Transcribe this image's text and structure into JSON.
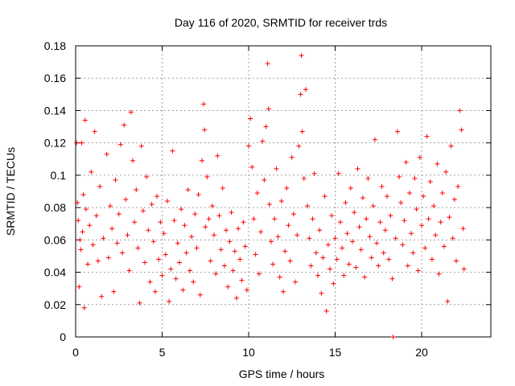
{
  "chart_data": {
    "type": "scatter",
    "title": "Day 116 of 2020, SRMTID for receiver trds",
    "xlabel": "GPS time / hours",
    "ylabel": "SRMTID / TECUs",
    "xlim": [
      0,
      24
    ],
    "ylim": [
      0,
      0.18
    ],
    "x_ticks": [
      0,
      5,
      10,
      15,
      20
    ],
    "x_tick_labels": [
      "0",
      "5",
      "10",
      "15",
      "20"
    ],
    "y_ticks": [
      0,
      0.02,
      0.04,
      0.06,
      0.08,
      0.1,
      0.12,
      0.14,
      0.16,
      0.18
    ],
    "y_tick_labels": [
      "0",
      "0.02",
      "0.04",
      "0.06",
      "0.08",
      "0.1",
      "0.12",
      "0.14",
      "0.16",
      "0.18"
    ],
    "grid": true,
    "marker": "+",
    "color": "#ff0000",
    "series": [
      {
        "name": "SRMTID",
        "points": [
          [
            0.05,
            0.12
          ],
          [
            0.1,
            0.083
          ],
          [
            0.15,
            0.072
          ],
          [
            0.2,
            0.031
          ],
          [
            0.25,
            0.06
          ],
          [
            0.3,
            0.054
          ],
          [
            0.35,
            0.12
          ],
          [
            0.4,
            0.065
          ],
          [
            0.45,
            0.088
          ],
          [
            0.5,
            0.018
          ],
          [
            0.55,
            0.134
          ],
          [
            0.6,
            0.079
          ],
          [
            0.7,
            0.045
          ],
          [
            0.8,
            0.069
          ],
          [
            0.9,
            0.102
          ],
          [
            1.0,
            0.057
          ],
          [
            1.1,
            0.127
          ],
          [
            1.2,
            0.075
          ],
          [
            1.3,
            0.047
          ],
          [
            1.4,
            0.093
          ],
          [
            1.5,
            0.025
          ],
          [
            1.6,
            0.061
          ],
          [
            1.8,
            0.113
          ],
          [
            1.9,
            0.049
          ],
          [
            2.0,
            0.081
          ],
          [
            2.1,
            0.067
          ],
          [
            2.2,
            0.028
          ],
          [
            2.3,
            0.097
          ],
          [
            2.4,
            0.058
          ],
          [
            2.5,
            0.076
          ],
          [
            2.6,
            0.119
          ],
          [
            2.7,
            0.052
          ],
          [
            2.8,
            0.131
          ],
          [
            2.9,
            0.085
          ],
          [
            3.0,
            0.063
          ],
          [
            3.1,
            0.041
          ],
          [
            3.2,
            0.139
          ],
          [
            3.3,
            0.109
          ],
          [
            3.4,
            0.071
          ],
          [
            3.5,
            0.091
          ],
          [
            3.6,
            0.055
          ],
          [
            3.7,
            0.021
          ],
          [
            3.8,
            0.118
          ],
          [
            3.9,
            0.078
          ],
          [
            4.0,
            0.046
          ],
          [
            4.1,
            0.099
          ],
          [
            4.2,
            0.066
          ],
          [
            4.3,
            0.034
          ],
          [
            4.4,
            0.082
          ],
          [
            4.5,
            0.059
          ],
          [
            4.6,
            0.028
          ],
          [
            4.7,
            0.087
          ],
          [
            4.8,
            0.048
          ],
          [
            4.9,
            0.071
          ],
          [
            5.0,
            0.038
          ],
          [
            5.1,
            0.064
          ],
          [
            5.2,
            0.051
          ],
          [
            5.3,
            0.084
          ],
          [
            5.4,
            0.022
          ],
          [
            5.5,
            0.042
          ],
          [
            5.6,
            0.115
          ],
          [
            5.7,
            0.072
          ],
          [
            5.8,
            0.036
          ],
          [
            5.9,
            0.058
          ],
          [
            6.0,
            0.046
          ],
          [
            6.1,
            0.079
          ],
          [
            6.2,
            0.029
          ],
          [
            6.3,
            0.069
          ],
          [
            6.4,
            0.052
          ],
          [
            6.5,
            0.091
          ],
          [
            6.6,
            0.041
          ],
          [
            6.7,
            0.062
          ],
          [
            6.8,
            0.034
          ],
          [
            6.9,
            0.076
          ],
          [
            7.0,
            0.055
          ],
          [
            7.1,
            0.088
          ],
          [
            7.2,
            0.026
          ],
          [
            7.3,
            0.109
          ],
          [
            7.4,
            0.144
          ],
          [
            7.45,
            0.128
          ],
          [
            7.5,
            0.068
          ],
          [
            7.6,
            0.099
          ],
          [
            7.7,
            0.073
          ],
          [
            7.8,
            0.047
          ],
          [
            7.9,
            0.081
          ],
          [
            8.0,
            0.063
          ],
          [
            8.1,
            0.039
          ],
          [
            8.2,
            0.112
          ],
          [
            8.3,
            0.075
          ],
          [
            8.4,
            0.054
          ],
          [
            8.5,
            0.092
          ],
          [
            8.6,
            0.044
          ],
          [
            8.7,
            0.066
          ],
          [
            8.8,
            0.031
          ],
          [
            8.9,
            0.059
          ],
          [
            9.0,
            0.077
          ],
          [
            9.1,
            0.041
          ],
          [
            9.2,
            0.053
          ],
          [
            9.3,
            0.024
          ],
          [
            9.4,
            0.067
          ],
          [
            9.5,
            0.048
          ],
          [
            9.6,
            0.035
          ],
          [
            9.7,
            0.071
          ],
          [
            9.8,
            0.056
          ],
          [
            9.9,
            0.029
          ],
          [
            10.0,
            0.118
          ],
          [
            10.1,
            0.135
          ],
          [
            10.2,
            0.105
          ],
          [
            10.3,
            0.073
          ],
          [
            10.4,
            0.051
          ],
          [
            10.5,
            0.089
          ],
          [
            10.6,
            0.039
          ],
          [
            10.7,
            0.065
          ],
          [
            10.8,
            0.121
          ],
          [
            10.9,
            0.097
          ],
          [
            11.0,
            0.13
          ],
          [
            11.1,
            0.169
          ],
          [
            11.15,
            0.141
          ],
          [
            11.2,
            0.082
          ],
          [
            11.3,
            0.059
          ],
          [
            11.4,
            0.045
          ],
          [
            11.5,
            0.073
          ],
          [
            11.6,
            0.104
          ],
          [
            11.7,
            0.062
          ],
          [
            11.8,
            0.037
          ],
          [
            11.9,
            0.084
          ],
          [
            12.0,
            0.028
          ],
          [
            12.1,
            0.053
          ],
          [
            12.2,
            0.092
          ],
          [
            12.3,
            0.069
          ],
          [
            12.4,
            0.047
          ],
          [
            12.5,
            0.111
          ],
          [
            12.6,
            0.076
          ],
          [
            12.7,
            0.034
          ],
          [
            12.8,
            0.063
          ],
          [
            12.9,
            0.118
          ],
          [
            13.0,
            0.15
          ],
          [
            13.05,
            0.174
          ],
          [
            13.1,
            0.127
          ],
          [
            13.2,
            0.098
          ],
          [
            13.3,
            0.153
          ],
          [
            13.4,
            0.081
          ],
          [
            13.5,
            0.061
          ],
          [
            13.6,
            0.044
          ],
          [
            13.7,
            0.073
          ],
          [
            13.8,
            0.101
          ],
          [
            13.9,
            0.052
          ],
          [
            14.0,
            0.038
          ],
          [
            14.1,
            0.066
          ],
          [
            14.2,
            0.027
          ],
          [
            14.3,
            0.049
          ],
          [
            14.4,
            0.087
          ],
          [
            14.5,
            0.016
          ],
          [
            14.6,
            0.057
          ],
          [
            14.7,
            0.042
          ],
          [
            14.8,
            0.075
          ],
          [
            14.9,
            0.033
          ],
          [
            15.0,
            0.061
          ],
          [
            15.1,
            0.048
          ],
          [
            15.2,
            0.101
          ],
          [
            15.3,
            0.071
          ],
          [
            15.4,
            0.055
          ],
          [
            15.5,
            0.038
          ],
          [
            15.6,
            0.083
          ],
          [
            15.7,
            0.064
          ],
          [
            15.8,
            0.045
          ],
          [
            15.9,
            0.092
          ],
          [
            16.0,
            0.059
          ],
          [
            16.1,
            0.077
          ],
          [
            16.2,
            0.043
          ],
          [
            16.3,
            0.104
          ],
          [
            16.4,
            0.068
          ],
          [
            16.5,
            0.054
          ],
          [
            16.6,
            0.086
          ],
          [
            16.7,
            0.037
          ],
          [
            16.8,
            0.073
          ],
          [
            16.9,
            0.098
          ],
          [
            17.0,
            0.062
          ],
          [
            17.1,
            0.049
          ],
          [
            17.2,
            0.081
          ],
          [
            17.3,
            0.122
          ],
          [
            17.4,
            0.058
          ],
          [
            17.5,
            0.044
          ],
          [
            17.6,
            0.071
          ],
          [
            17.7,
            0.093
          ],
          [
            17.8,
            0.052
          ],
          [
            17.9,
            0.066
          ],
          [
            18.0,
            0.087
          ],
          [
            18.1,
            0.048
          ],
          [
            18.2,
            0.075
          ],
          [
            18.3,
            0.036
          ],
          [
            18.5,
            0.061
          ],
          [
            18.6,
            0.127
          ],
          [
            18.7,
            0.099
          ],
          [
            18.8,
            0.083
          ],
          [
            18.9,
            0.057
          ],
          [
            19.0,
            0.072
          ],
          [
            19.1,
            0.108
          ],
          [
            19.2,
            0.044
          ],
          [
            19.3,
            0.089
          ],
          [
            19.4,
            0.064
          ],
          [
            19.5,
            0.052
          ],
          [
            19.6,
            0.098
          ],
          [
            19.7,
            0.079
          ],
          [
            19.8,
            0.041
          ],
          [
            19.9,
            0.111
          ],
          [
            20.0,
            0.069
          ],
          [
            20.1,
            0.087
          ],
          [
            20.2,
            0.055
          ],
          [
            20.3,
            0.124
          ],
          [
            20.4,
            0.073
          ],
          [
            20.5,
            0.096
          ],
          [
            20.6,
            0.048
          ],
          [
            20.7,
            0.081
          ],
          [
            20.8,
            0.063
          ],
          [
            20.9,
            0.107
          ],
          [
            21.0,
            0.039
          ],
          [
            21.1,
            0.071
          ],
          [
            21.2,
            0.089
          ],
          [
            21.3,
            0.056
          ],
          [
            21.4,
            0.102
          ],
          [
            21.5,
            0.022
          ],
          [
            21.6,
            0.074
          ],
          [
            21.7,
            0.118
          ],
          [
            21.8,
            0.061
          ],
          [
            21.9,
            0.085
          ],
          [
            22.0,
            0.047
          ],
          [
            22.1,
            0.093
          ],
          [
            22.2,
            0.14
          ],
          [
            22.3,
            0.128
          ],
          [
            22.4,
            0.067
          ],
          [
            22.45,
            0.042
          ],
          [
            18.35,
            0.0
          ]
        ]
      }
    ]
  }
}
